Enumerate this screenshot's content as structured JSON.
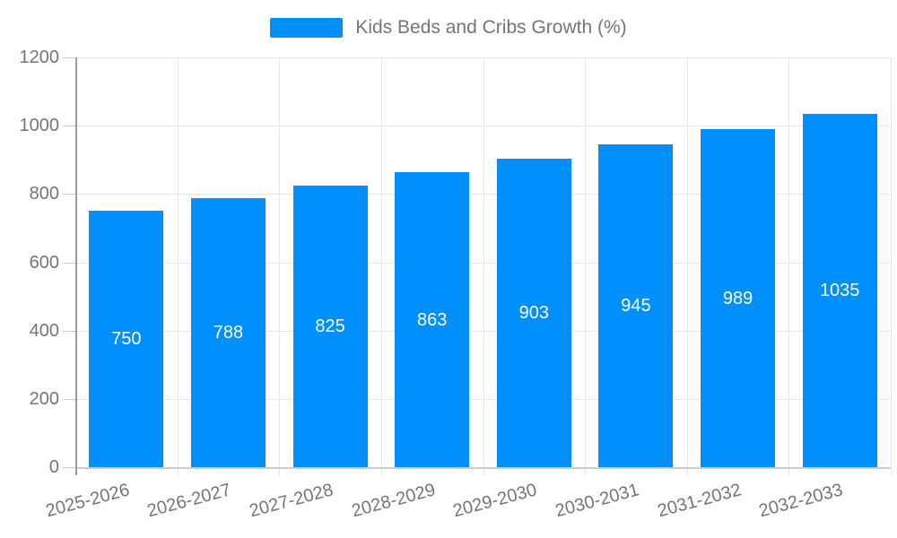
{
  "legend": {
    "label": "Kids Beds and Cribs Growth (%)",
    "marker_color": "#008FFB"
  },
  "chart_data": {
    "type": "bar",
    "title": "Kids Beds and Cribs Growth (%)",
    "xlabel": "",
    "ylabel": "",
    "categories": [
      "2025-2026",
      "2026-2027",
      "2027-2028",
      "2028-2029",
      "2029-2030",
      "2030-2031",
      "2031-2032",
      "2032-2033"
    ],
    "values": [
      750,
      788,
      825,
      863,
      903,
      945,
      989,
      1035
    ],
    "ylim": [
      0,
      1200
    ],
    "yticks": [
      0,
      200,
      400,
      600,
      800,
      1000,
      1200
    ],
    "grid": true,
    "legend_position": "top",
    "bar_color": "#008FFB",
    "data_label_color": "#FFFFFF",
    "axis_label_color": "#757575"
  }
}
